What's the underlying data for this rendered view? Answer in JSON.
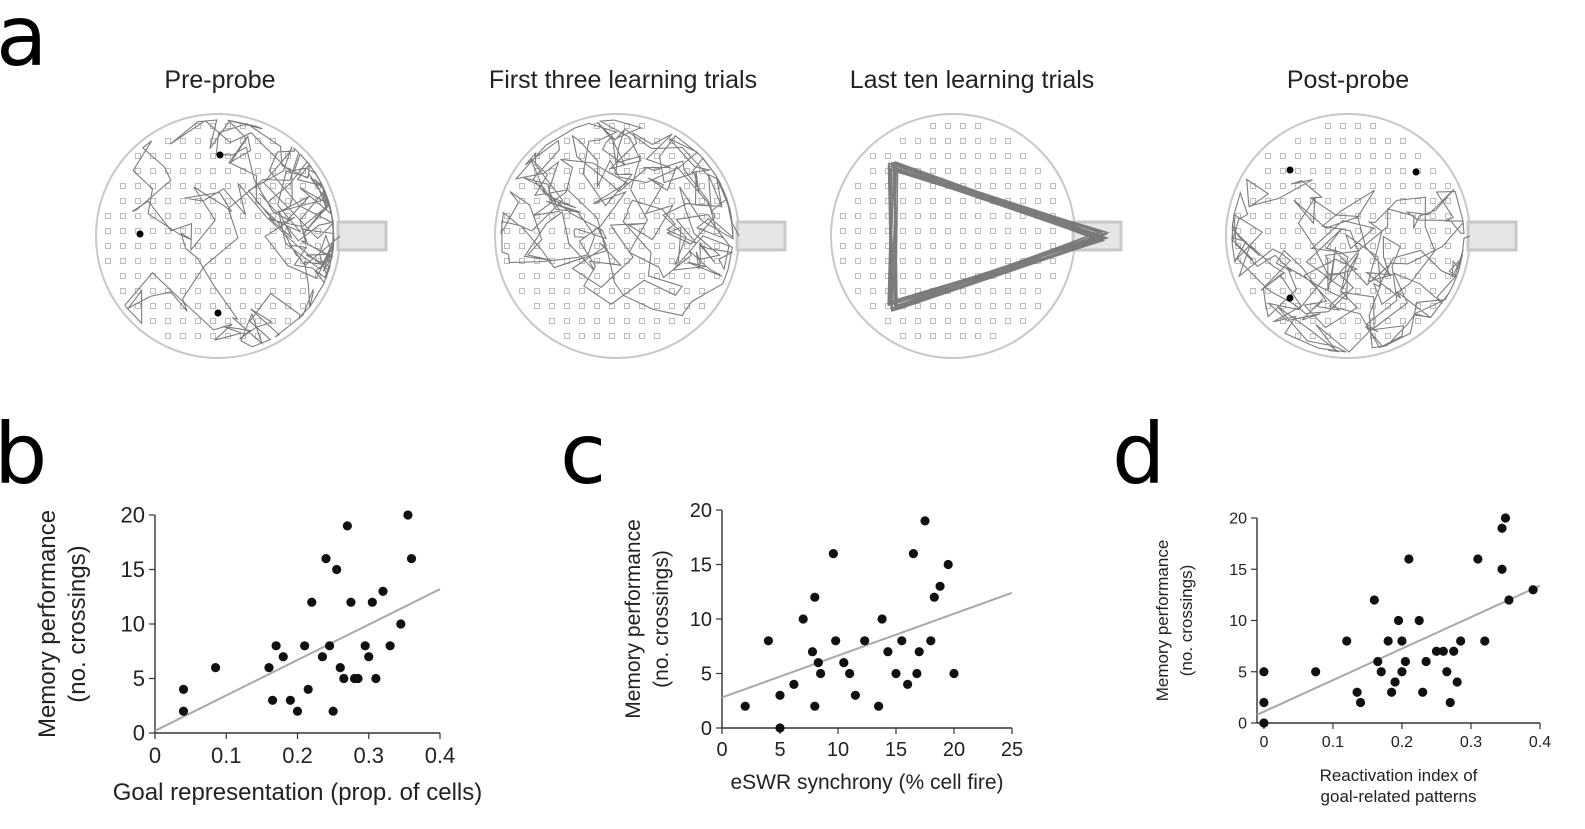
{
  "panels": {
    "a": {
      "letter": "a"
    },
    "b": {
      "letter": "b"
    },
    "c": {
      "letter": "c"
    },
    "d": {
      "letter": "d"
    }
  },
  "arenas": [
    {
      "title": "Pre-probe",
      "goal_dots": 3
    },
    {
      "title": "First three learning trials",
      "goal_dots": 0
    },
    {
      "title": "Last ten learning trials",
      "goal_dots": 0
    },
    {
      "title": "Post-probe",
      "goal_dots": 3
    }
  ],
  "colors": {
    "trajectory": "#6e6e6e",
    "arena_outline": "#c8c8c8",
    "well": "#bdbdbd",
    "points": "#111111",
    "fit_line": "#a8a8a8"
  },
  "chart_data": [
    {
      "panel": "b",
      "type": "scatter",
      "xlabel": "Goal representation (prop. of cells)",
      "ylabel": "Memory performance",
      "ylabel2": "(no. crossings)",
      "xlim": [
        0,
        0.4
      ],
      "ylim": [
        0,
        20
      ],
      "xticks": [
        "0",
        "0.1",
        "0.2",
        "0.3",
        "0.4"
      ],
      "yticks": [
        "0",
        "5",
        "10",
        "15",
        "20"
      ],
      "x": [
        0.04,
        0.04,
        0.085,
        0.16,
        0.165,
        0.17,
        0.18,
        0.19,
        0.2,
        0.21,
        0.215,
        0.22,
        0.235,
        0.24,
        0.245,
        0.25,
        0.255,
        0.26,
        0.265,
        0.27,
        0.275,
        0.28,
        0.285,
        0.295,
        0.3,
        0.305,
        0.31,
        0.32,
        0.33,
        0.345,
        0.355,
        0.36
      ],
      "y": [
        4,
        2,
        6,
        6,
        3,
        8,
        7,
        3,
        2,
        8,
        4,
        12,
        7,
        16,
        8,
        2,
        15,
        6,
        5,
        19,
        12,
        5,
        5,
        8,
        7,
        12,
        5,
        13,
        8,
        10,
        20,
        16
      ],
      "fit": {
        "x": [
          0,
          0.4
        ],
        "y": [
          0.2,
          13.2
        ]
      }
    },
    {
      "panel": "c",
      "type": "scatter",
      "xlabel": "eSWR synchrony (% cell fire)",
      "ylabel": "Memory performance",
      "ylabel2": "(no. crossings)",
      "xlim": [
        0,
        25
      ],
      "ylim": [
        0,
        20
      ],
      "xticks": [
        "0",
        "5",
        "10",
        "15",
        "20",
        "25"
      ],
      "yticks": [
        "0",
        "5",
        "10",
        "15",
        "20"
      ],
      "x": [
        2,
        4,
        5,
        5,
        6.2,
        7,
        7.8,
        8,
        8,
        8.3,
        8.5,
        9.6,
        9.8,
        10.5,
        11,
        11.5,
        12.3,
        13.5,
        13.8,
        14.3,
        15,
        15.5,
        16,
        16.5,
        16.8,
        17,
        17.5,
        18,
        18.3,
        18.8,
        19.5,
        20
      ],
      "y": [
        2,
        8,
        3,
        0,
        4,
        10,
        7,
        2,
        12,
        6,
        5,
        16,
        8,
        6,
        5,
        3,
        8,
        2,
        10,
        7,
        5,
        8,
        4,
        16,
        5,
        7,
        19,
        8,
        12,
        13,
        15,
        5
      ],
      "fit": {
        "x": [
          0,
          25
        ],
        "y": [
          2.8,
          12.4
        ]
      }
    },
    {
      "panel": "d",
      "type": "scatter",
      "xlabel": "Reactivation index of",
      "xlabel2": "goal-related patterns",
      "ylabel": "Memory performance",
      "ylabel2": "(no. crossings)",
      "xlim": [
        -0.01,
        0.4
      ],
      "ylim": [
        0,
        20
      ],
      "xticks": [
        "0",
        "0.1",
        "0.2",
        "0.3",
        "0.4"
      ],
      "yticks": [
        "0",
        "5",
        "10",
        "15",
        "20"
      ],
      "x": [
        0,
        0,
        0,
        0.075,
        0.12,
        0.135,
        0.14,
        0.16,
        0.165,
        0.17,
        0.18,
        0.185,
        0.19,
        0.195,
        0.2,
        0.2,
        0.205,
        0.21,
        0.225,
        0.23,
        0.235,
        0.25,
        0.26,
        0.265,
        0.27,
        0.275,
        0.28,
        0.285,
        0.31,
        0.32,
        0.345,
        0.345,
        0.35,
        0.355,
        0.39
      ],
      "y": [
        5,
        2,
        0,
        5,
        8,
        3,
        2,
        12,
        6,
        5,
        8,
        3,
        4,
        10,
        5,
        8,
        6,
        16,
        10,
        3,
        6,
        7,
        7,
        5,
        2,
        7,
        4,
        8,
        16,
        8,
        15,
        19,
        20,
        12,
        13
      ],
      "fit": {
        "x": [
          -0.01,
          0.4
        ],
        "y": [
          0.8,
          13.4
        ]
      }
    }
  ]
}
